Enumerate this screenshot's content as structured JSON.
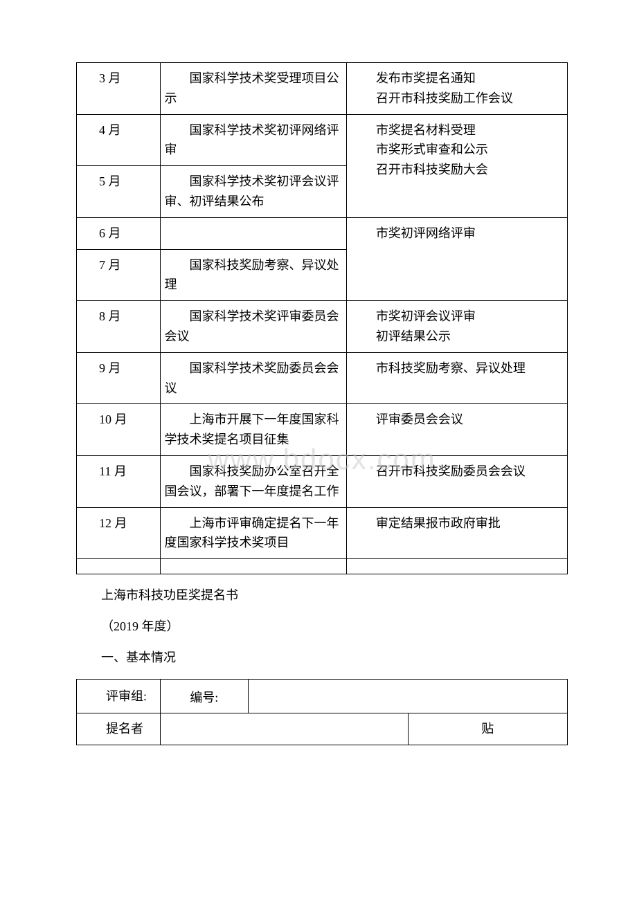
{
  "schedule_table": {
    "border_color": "#000000",
    "background_color": "#ffffff",
    "text_color": "#000000",
    "font_size_pt": 14,
    "columns": [
      {
        "width_pct": 17
      },
      {
        "width_pct": 38
      },
      {
        "width_pct": 45
      }
    ],
    "rows": [
      {
        "month": "3 月",
        "national": "国家科学技术奖受理项目公示",
        "city_lines": [
          "发布市奖提名通知",
          "召开市科技奖励工作会议"
        ],
        "city_rowspan": 1
      },
      {
        "month": "4 月",
        "national": "国家科学技术奖初评网络评审",
        "city_group_start": true,
        "city_rowspan": 2,
        "city_lines": [
          "市奖提名材料受理",
          "市奖形式审查和公示",
          "召开市科技奖励大会"
        ]
      },
      {
        "month": "5 月",
        "national": "国家科学技术奖初评会议评审、初评结果公布"
      },
      {
        "month": "6 月",
        "national": "",
        "city_group_start": true,
        "city_rowspan": 2,
        "city_lines": [
          "市奖初评网络评审"
        ]
      },
      {
        "month": "7 月",
        "national": "国家科技奖励考察、异议处理"
      },
      {
        "month": "8 月",
        "national": "国家科学技术奖评审委员会会议",
        "city_lines": [
          "市奖初评会议评审",
          "初评结果公示"
        ],
        "city_rowspan": 1
      },
      {
        "month": "9 月",
        "national": "国家科学技术奖励委员会会议",
        "city_lines": [
          "市科技奖励考察、异议处理"
        ],
        "city_rowspan": 1
      },
      {
        "month": "10 月",
        "national": "上海市开展下一年度国家科学技术奖提名项目征集",
        "city_lines": [
          "评审委员会会议"
        ],
        "city_rowspan": 1
      },
      {
        "month": "11 月",
        "national": "国家科技奖励办公室召开全国会议，部署下一年度提名工作",
        "city_lines": [
          "召开市科技奖励委员会会议"
        ],
        "city_rowspan": 1
      },
      {
        "month": "12 月",
        "national": "上海市评审确定提名下一年度国家科学技术奖项目",
        "city_lines": [
          "审定结果报市政府审批"
        ],
        "city_rowspan": 1
      }
    ]
  },
  "post_text": {
    "line1": "上海市科技功臣奖提名书",
    "line2": "（2019 年度）",
    "line3": "一、基本情况"
  },
  "form_table": {
    "row1": {
      "label1": "评审组:",
      "label2": "编号:"
    },
    "row2": {
      "label1": "提名者",
      "label3": "贴"
    }
  },
  "watermark_text": "www.bdocx.com",
  "watermark_color": "rgba(200,200,200,0.5)"
}
